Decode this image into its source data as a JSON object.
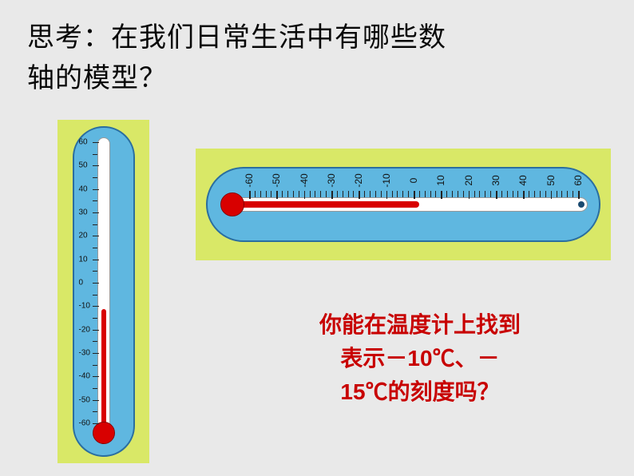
{
  "heading": {
    "line1": "思考：在我们日常生活中有哪些数",
    "line2": "轴的模型？"
  },
  "vertical_thermo": {
    "min": -60,
    "max": 60,
    "step": 10,
    "labels": [
      "60",
      "50",
      "40",
      "30",
      "20",
      "10",
      "0",
      "-10",
      "-20",
      "-30",
      "-40",
      "-50",
      "-60"
    ],
    "fluid_value": -10,
    "body_color": "#5fb7e0",
    "border_color": "#2a6ea0",
    "fluid_color": "#d80000",
    "glass_color": "#ffffff",
    "wrap_bg": "#d9e867"
  },
  "horizontal_thermo": {
    "min": -60,
    "max": 60,
    "step": 10,
    "labels": [
      "-60",
      "-50",
      "-40",
      "-30",
      "-20",
      "-10",
      "0",
      "10",
      "20",
      "30",
      "40",
      "50",
      "60"
    ],
    "fluid_value": 5,
    "body_color": "#5fb7e0",
    "border_color": "#2a6ea0",
    "fluid_color": "#d80000",
    "glass_color": "#ffffff",
    "wrap_bg": "#d9e867"
  },
  "prompt": {
    "line1": "你能在温度计上找到",
    "line2": "表示－10℃、－",
    "line3": "15℃的刻度吗？"
  },
  "colors": {
    "page_bg": "#e9e9e9",
    "heading_color": "#080808",
    "prompt_color": "#c80000"
  },
  "typography": {
    "heading_fontsize": 34,
    "prompt_fontsize": 28,
    "label_fontsize_v": 10,
    "label_fontsize_h": 12
  }
}
